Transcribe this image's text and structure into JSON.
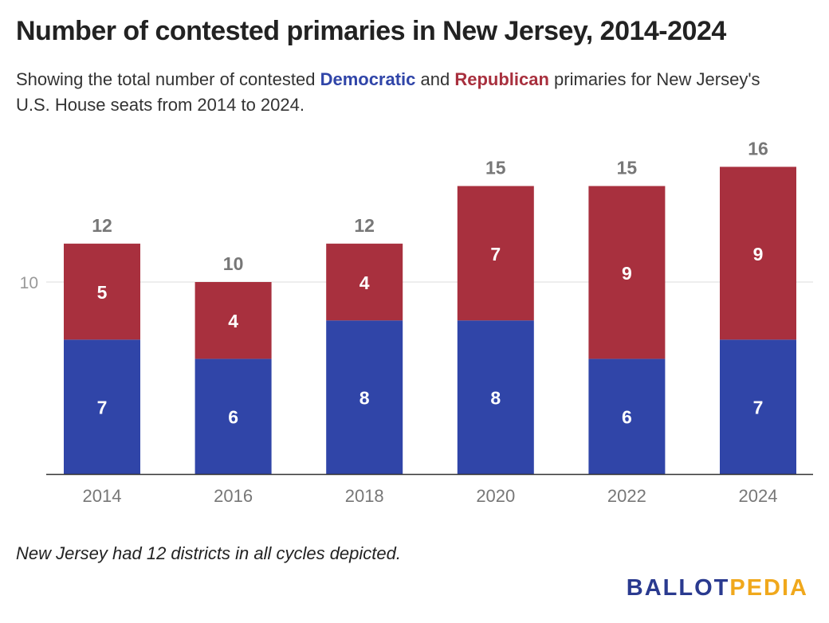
{
  "header": {
    "title": "Number of contested primaries in New Jersey, 2014-2024",
    "subtitle_prefix": "Showing the total number of contested ",
    "subtitle_dem": "Democratic",
    "subtitle_mid": " and ",
    "subtitle_rep": "Republican",
    "subtitle_suffix": " primaries for New Jersey's U.S. House seats from 2014 to 2024."
  },
  "footnote": "New Jersey had 12 districts in all cycles depicted.",
  "logo": {
    "part1": "BALLOT",
    "part2": "PEDIA"
  },
  "colors": {
    "democratic": "#3045a8",
    "republican": "#a8303e",
    "axis_text": "#777777",
    "total_text": "#777777"
  },
  "chart_data": {
    "type": "bar",
    "stacked": true,
    "categories": [
      "2014",
      "2016",
      "2018",
      "2020",
      "2022",
      "2024"
    ],
    "series": [
      {
        "name": "Democratic",
        "values": [
          7,
          6,
          8,
          8,
          6,
          7
        ]
      },
      {
        "name": "Republican",
        "values": [
          5,
          4,
          4,
          7,
          9,
          9
        ]
      }
    ],
    "totals": [
      12,
      10,
      12,
      15,
      15,
      16
    ],
    "yticks": [
      10
    ],
    "ylim": [
      0,
      17
    ],
    "grid": true,
    "legend": "in subtitle"
  }
}
